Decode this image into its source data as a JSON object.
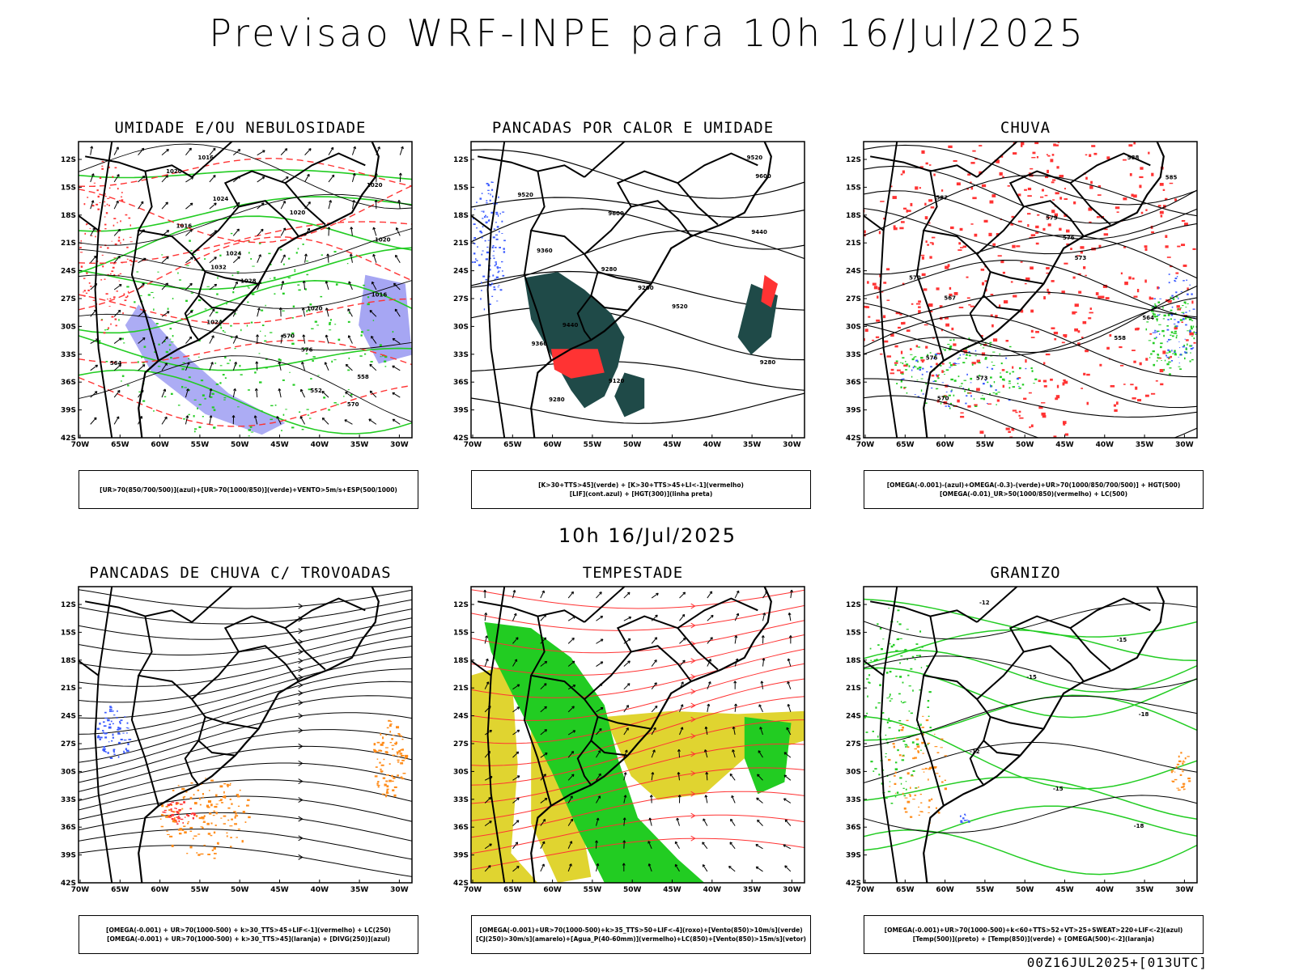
{
  "title": "Previsao WRF-INPE  para 10h 16/Jul/2025",
  "mid_title": "10h 16/Jul/2025",
  "footer": "00Z16JUL2025+[013UTC]",
  "lat_labels": [
    "12S",
    "15S",
    "18S",
    "21S",
    "24S",
    "27S",
    "30S",
    "33S",
    "36S",
    "39S",
    "42S"
  ],
  "lon_labels": [
    "70W",
    "65W",
    "60W",
    "55W",
    "50W",
    "45W",
    "40W",
    "35W",
    "30W"
  ],
  "colors": {
    "blue": "#3b5bff",
    "green": "#22cc22",
    "red": "#ff3333",
    "orange": "#ff8c1a",
    "dark_teal": "#1f4a48",
    "yellow": "#e0d430",
    "lavender": "#9090f0"
  },
  "panels": [
    {
      "title": "UMIDADE E/OU NEBULOSIDADE",
      "legend": [
        "[UR>70(850/700/500)](azul)+[UR>70(1000/850)](verde)+VENTO>5m/s+ESP(500/1000)"
      ],
      "contour_labels": [
        "1016",
        "1020",
        "1020",
        "1024",
        "1020",
        "1016",
        "1020",
        "1024",
        "1032",
        "1028",
        "1016",
        "1020",
        "1024",
        "570",
        "576",
        "564",
        "558",
        "552",
        "570"
      ]
    },
    {
      "title": "PANCADAS POR CALOR E UMIDADE",
      "legend": [
        "[K>30+TTS>45](verde) + [K>30+TTS>45+LI<-1](vermelho)",
        "[LIF](cont.azul) + [HGT(300)](linha preta)"
      ],
      "contour_labels": [
        "9520",
        "9600",
        "9520",
        "9600",
        "9440",
        "9360",
        "9280",
        "9200",
        "9520",
        "9440",
        "9360",
        "9280",
        "9120",
        "9280"
      ]
    },
    {
      "title": "CHUVA",
      "legend": [
        "[OMEGA(-0.001)-(azul)+OMEGA(-0.3)-(verde)+UR>70(1000/850/700/500)] + HGT(500)",
        "[OMEGA(-0.01)_UR>50(1000/850)(vermelho) + LC(500)"
      ],
      "contour_labels": [
        "588",
        "585",
        "582",
        "579",
        "576",
        "573",
        "570",
        "567",
        "564",
        "558",
        "576",
        "573",
        "570"
      ]
    },
    {
      "title": "PANCADAS DE CHUVA C/ TROVOADAS",
      "legend": [
        "[OMEGA(-0.001) + UR>70(1000-500) + k>30_TTS>45+LIF<-1](vermelho) + LC(250)",
        "[OMEGA(-0.001) + UR>70(1000-500) + k>30_TTS>45](laranja) + [DIVG(250)](azul)"
      ],
      "contour_labels": []
    },
    {
      "title": "TEMPESTADE",
      "legend": [
        "[OMEGA(-0.001)+UR>70(1000-500)+k>35_TTS>50+LIF<-4](roxo)+[Vento(850)>10m/s](verde)",
        "[CJ(250)>30m/s](amarelo)+[Agua_P(40-60mm)](vermelho)+LC(850)+[Vento(850)>15m/s](vetor)"
      ],
      "contour_labels": []
    },
    {
      "title": "GRANIZO",
      "legend": [
        "[OMEGA(-0.001)+UR>70(1000-500)+k<60+TTS>52+VT>25+SWEAT>220+LIF<-2](azul)",
        "[Temp(500)](preto) + [Temp(850)](verde) + [OMEGA(500)<-2](laranja)"
      ],
      "contour_labels": [
        "-12",
        "-15",
        "-15",
        "-18",
        "-12",
        "-15",
        "-18"
      ]
    }
  ]
}
